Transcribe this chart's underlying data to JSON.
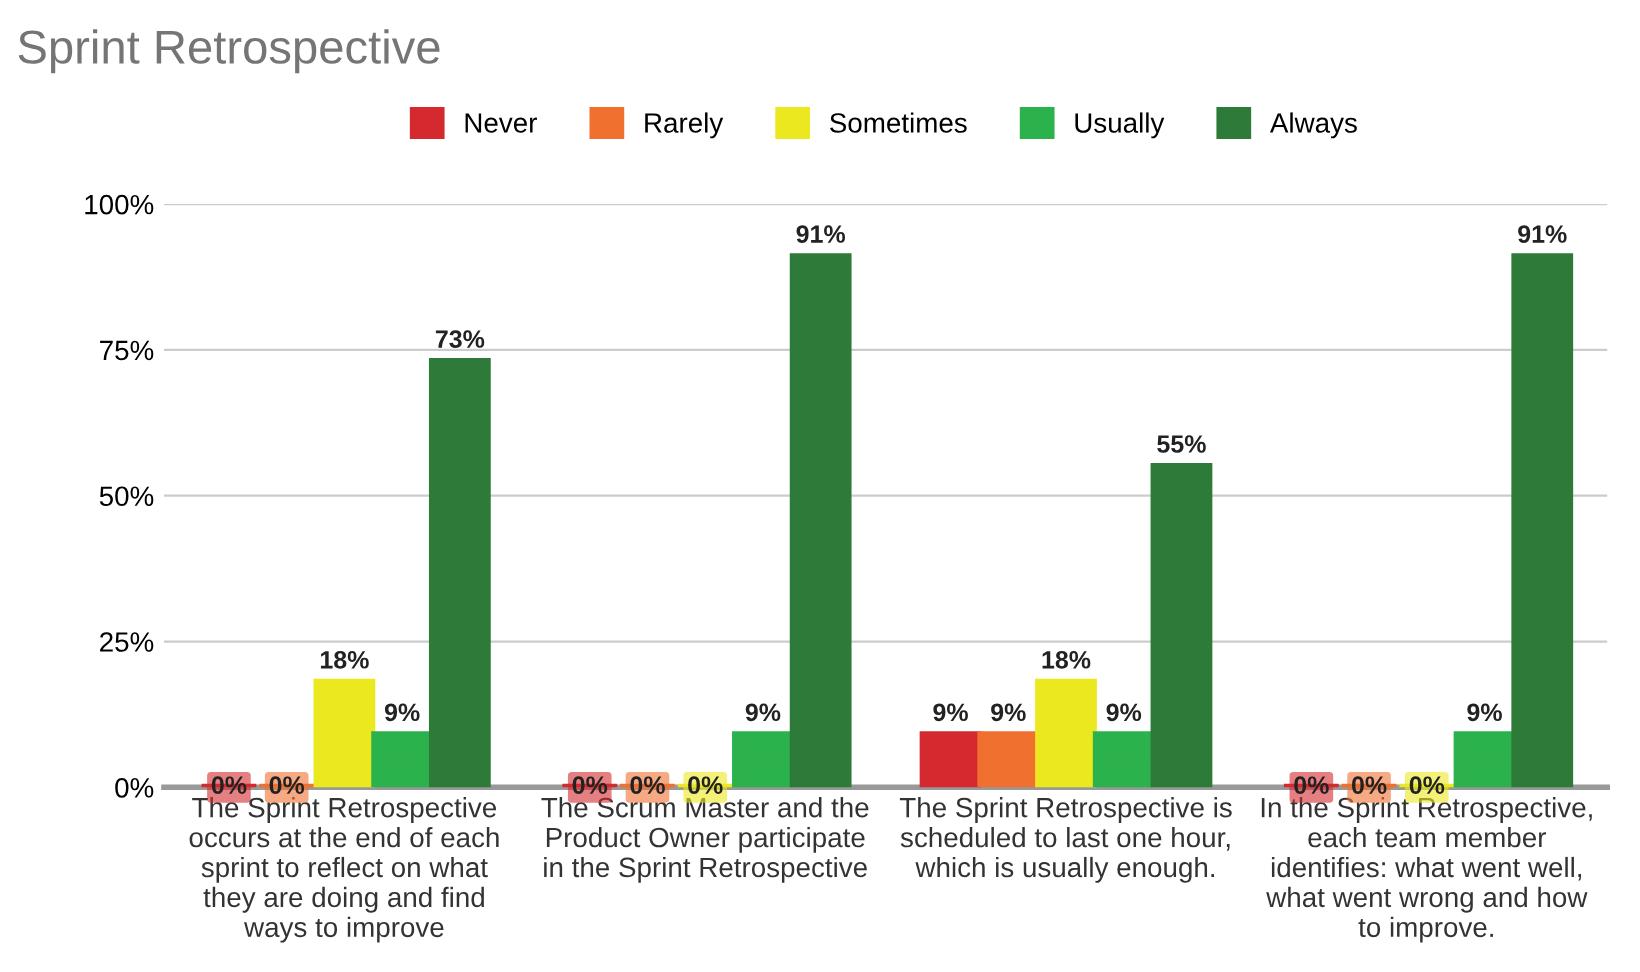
{
  "chart_data": {
    "type": "bar",
    "title": "Sprint Retrospective",
    "categories": [
      "The Sprint Retrospective\noccurs at the end of each\nsprint to reflect on what\nthey are doing and find\nways to improve",
      "The Scrum Master and the\nProduct Owner participate\nin the Sprint Retrospective",
      "The Sprint Retrospective is\nscheduled to last one hour,\nwhich is usually enough.",
      "In the Sprint Retrospective,\neach team member\nidentifies: what went well,\nwhat went wrong and how\nto improve."
    ],
    "series": [
      {
        "name": "Never",
        "color": "#d42a2f",
        "values": [
          0,
          0,
          9,
          0
        ],
        "value_labels": [
          "0%",
          "0%",
          "9%",
          "0%"
        ]
      },
      {
        "name": "Rarely",
        "color": "#f07030",
        "values": [
          0,
          0,
          9,
          0
        ],
        "value_labels": [
          "0%",
          "0%",
          "9%",
          "0%"
        ]
      },
      {
        "name": "Sometimes",
        "color": "#ece820",
        "values": [
          18,
          0,
          18,
          0
        ],
        "value_labels": [
          "18%",
          "0%",
          "18%",
          "0%"
        ]
      },
      {
        "name": "Usually",
        "color": "#2bb24c",
        "values": [
          9,
          9,
          9,
          9
        ],
        "value_labels": [
          "9%",
          "9%",
          "9%",
          "9%"
        ]
      },
      {
        "name": "Always",
        "color": "#2e7a38",
        "values": [
          73,
          91,
          55,
          91
        ],
        "value_labels": [
          "73%",
          "91%",
          "55%",
          "91%"
        ]
      }
    ],
    "ylim": [
      0,
      100
    ],
    "yticks": [
      {
        "value": 0,
        "label": "0%"
      },
      {
        "value": 25,
        "label": "25%"
      },
      {
        "value": 50,
        "label": "50%"
      },
      {
        "value": 75,
        "label": "75%"
      },
      {
        "value": 100,
        "label": "100%"
      }
    ],
    "grid": "y",
    "legend": "top"
  }
}
